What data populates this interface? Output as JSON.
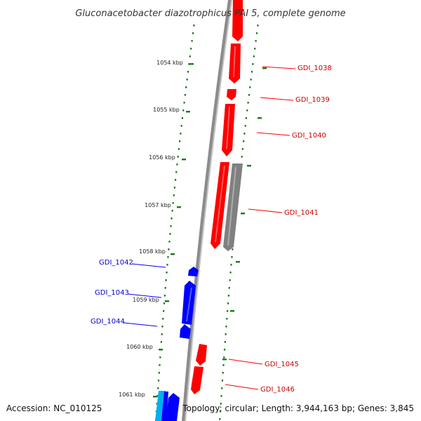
{
  "title": "Gluconacetobacter diazotrophicus PAI 5, complete genome",
  "footer": {
    "accession": "Accession: NC_010125",
    "topology": "Topology: circular; Length: 3,944,163 bp; Genes: 3,845"
  },
  "colors": {
    "forward": "#ff0000",
    "reverse": "#0000ff",
    "pseudo": "#808080",
    "rna": "#00b0f0",
    "tick": "#1a7a1a",
    "backbone": "#8c8c8c"
  },
  "kbp_ticks": [
    "1054 kbp",
    "1055 kbp",
    "1056 kbp",
    "1057 kbp",
    "1058 kbp",
    "1059 kbp",
    "1060 kbp",
    "1061 kbp"
  ],
  "forward_genes": [
    "GDI_1038",
    "GDI_1039",
    "GDI_1040",
    "GDI_1041",
    "GDI_1045",
    "GDI_1046"
  ],
  "reverse_genes": [
    "GDI_1042",
    "GDI_1043",
    "GDI_1044"
  ]
}
